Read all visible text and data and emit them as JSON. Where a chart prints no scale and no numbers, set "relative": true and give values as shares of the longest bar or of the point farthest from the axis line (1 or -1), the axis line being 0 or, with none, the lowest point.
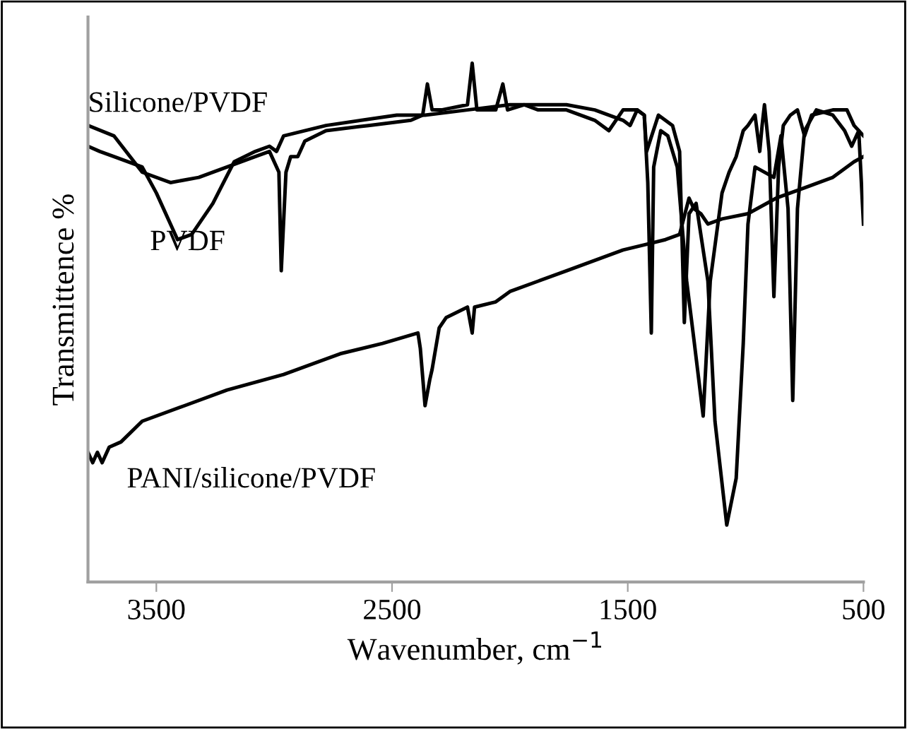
{
  "chart_data": {
    "type": "line",
    "relative": true,
    "xlabel": "Wavenumber, cm$^{−1}$",
    "ylabel": "Transmittence %",
    "xlim": [
      3790,
      500
    ],
    "xticks": [
      3500,
      2500,
      1500,
      500
    ],
    "tick_labels": "x",
    "grid": false,
    "legend": false,
    "marker": "none",
    "line_style": "solid",
    "series": [
      {
        "name": "Silicone/PVDF",
        "color": "#000000",
        "x": [
          3790,
          3680,
          3560,
          3440,
          3320,
          3200,
          3080,
          3020,
          2980,
          2970,
          2950,
          2930,
          2900,
          2870,
          2780,
          2600,
          2420,
          2370,
          2350,
          2330,
          2290,
          2180,
          2160,
          2140,
          2060,
          2030,
          2010,
          1940,
          1880,
          1760,
          1640,
          1580,
          1520,
          1460,
          1430,
          1420,
          1370,
          1310,
          1280,
          1260,
          1240,
          1210,
          1160,
          1130,
          1080,
          1040,
          1010,
          990,
          960,
          880,
          850,
          820,
          800,
          780,
          750,
          700,
          630,
          580,
          550,
          520,
          500
        ],
        "values": [
          0.88,
          0.86,
          0.79,
          0.77,
          0.78,
          0.8,
          0.82,
          0.83,
          0.79,
          0.6,
          0.79,
          0.82,
          0.82,
          0.85,
          0.87,
          0.88,
          0.89,
          0.9,
          0.96,
          0.91,
          0.91,
          0.92,
          1.0,
          0.91,
          0.91,
          0.96,
          0.91,
          0.92,
          0.91,
          0.91,
          0.89,
          0.87,
          0.91,
          0.91,
          0.9,
          0.83,
          0.9,
          0.88,
          0.83,
          0.5,
          0.71,
          0.73,
          0.58,
          0.31,
          0.11,
          0.2,
          0.46,
          0.69,
          0.8,
          0.78,
          0.86,
          0.72,
          0.35,
          0.72,
          0.87,
          0.91,
          0.9,
          0.87,
          0.84,
          0.87,
          0.69
        ]
      },
      {
        "name": "PVDF",
        "color": "#000000",
        "x": [
          3790,
          3740,
          3680,
          3560,
          3500,
          3410,
          3350,
          3260,
          3170,
          3080,
          3020,
          2990,
          2960,
          2780,
          2480,
          2360,
          2180,
          2000,
          1760,
          1640,
          1520,
          1490,
          1460,
          1430,
          1415,
          1400,
          1390,
          1360,
          1330,
          1290,
          1250,
          1220,
          1180,
          1150,
          1100,
          1070,
          1040,
          1010,
          990,
          960,
          940,
          930,
          920,
          900,
          880,
          860,
          840,
          810,
          780,
          750,
          720,
          630,
          570,
          540,
          500
        ],
        "values": [
          0.84,
          0.83,
          0.82,
          0.8,
          0.75,
          0.66,
          0.67,
          0.73,
          0.81,
          0.83,
          0.84,
          0.83,
          0.86,
          0.88,
          0.9,
          0.9,
          0.91,
          0.92,
          0.92,
          0.91,
          0.89,
          0.88,
          0.91,
          0.9,
          0.77,
          0.48,
          0.8,
          0.87,
          0.86,
          0.8,
          0.58,
          0.47,
          0.32,
          0.58,
          0.75,
          0.79,
          0.82,
          0.87,
          0.88,
          0.9,
          0.83,
          0.88,
          0.92,
          0.83,
          0.55,
          0.8,
          0.88,
          0.9,
          0.91,
          0.86,
          0.9,
          0.91,
          0.91,
          0.88,
          0.86
        ]
      },
      {
        "name": "PANI/silicone/PVDF",
        "color": "#000000",
        "x": [
          3790,
          3770,
          3750,
          3730,
          3700,
          3650,
          3560,
          3380,
          3200,
          2960,
          2720,
          2540,
          2390,
          2380,
          2360,
          2340,
          2330,
          2300,
          2270,
          2180,
          2160,
          2150,
          2060,
          2000,
          1880,
          1760,
          1640,
          1520,
          1430,
          1340,
          1280,
          1240,
          1220,
          1190,
          1160,
          1100,
          990,
          870,
          750,
          630,
          540,
          500
        ],
        "values": [
          0.25,
          0.23,
          0.25,
          0.23,
          0.26,
          0.27,
          0.31,
          0.34,
          0.37,
          0.4,
          0.44,
          0.46,
          0.48,
          0.45,
          0.34,
          0.39,
          0.41,
          0.49,
          0.51,
          0.53,
          0.48,
          0.53,
          0.54,
          0.56,
          0.58,
          0.6,
          0.62,
          0.64,
          0.65,
          0.66,
          0.67,
          0.74,
          0.72,
          0.71,
          0.69,
          0.7,
          0.71,
          0.74,
          0.76,
          0.78,
          0.81,
          0.82
        ]
      }
    ]
  }
}
